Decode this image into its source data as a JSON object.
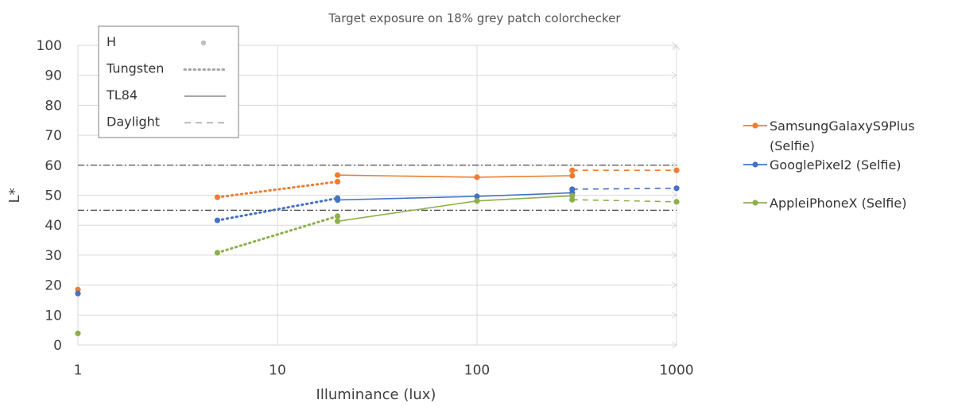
{
  "chart_data": {
    "type": "line",
    "title": "Target exposure on 18% grey patch colorchecker",
    "xlabel": "Illuminance (lux)",
    "ylabel": "L*",
    "xscale": "log",
    "xlim": [
      1,
      1000
    ],
    "ylim": [
      0,
      100
    ],
    "xticks": [
      "1",
      "10",
      "100",
      "1000"
    ],
    "yticks": [
      "0",
      "10",
      "20",
      "30",
      "40",
      "50",
      "60",
      "70",
      "80",
      "90",
      "100"
    ],
    "grid": true,
    "reference_lines": [
      60,
      45
    ],
    "colors": {
      "samsung": "#ED7D31",
      "google": "#4472C4",
      "apple": "#8DB04A",
      "legend_marker": "#bfbfbf",
      "legend_line": "#a6a6a6",
      "reference": "#404040"
    },
    "illuminant_legend": {
      "placement": "top-left",
      "items": [
        {
          "label": "H",
          "style": "marker"
        },
        {
          "label": "Tungsten",
          "style": "dotted"
        },
        {
          "label": "TL84",
          "style": "solid"
        },
        {
          "label": "Daylight",
          "style": "dashed"
        }
      ]
    },
    "device_legend": {
      "placement": "right",
      "items": [
        {
          "key": "samsung",
          "lines": [
            "SamsungGalaxyS9Plus",
            "(Selfie)"
          ]
        },
        {
          "key": "google",
          "lines": [
            "GooglePixel2 (Selfie)"
          ]
        },
        {
          "key": "apple",
          "lines": [
            "AppleiPhoneX (Selfie)"
          ]
        }
      ]
    },
    "series": [
      {
        "name": "SamsungGalaxyS9Plus (Selfie)",
        "key": "samsung",
        "H": [
          [
            1,
            18.5
          ]
        ],
        "Tungsten": [
          [
            5,
            49.3
          ],
          [
            20,
            54.5
          ]
        ],
        "TL84": [
          [
            20,
            56.7
          ],
          [
            100,
            56.0
          ],
          [
            300,
            56.5
          ]
        ],
        "Daylight": [
          [
            300,
            58.3
          ],
          [
            1000,
            58.3
          ]
        ]
      },
      {
        "name": "GooglePixel2 (Selfie)",
        "key": "google",
        "H": [
          [
            1,
            17.2
          ]
        ],
        "Tungsten": [
          [
            5,
            41.6
          ],
          [
            20,
            49.0
          ]
        ],
        "TL84": [
          [
            20,
            48.4
          ],
          [
            100,
            49.6
          ],
          [
            300,
            50.8
          ]
        ],
        "Daylight": [
          [
            300,
            52.0
          ],
          [
            1000,
            52.3
          ]
        ]
      },
      {
        "name": "AppleiPhoneX (Selfie)",
        "key": "apple",
        "H": [
          [
            1,
            3.9
          ]
        ],
        "Tungsten": [
          [
            5,
            30.8
          ],
          [
            20,
            43.0
          ]
        ],
        "TL84": [
          [
            20,
            41.3
          ],
          [
            100,
            48.1
          ],
          [
            300,
            49.8
          ]
        ],
        "Daylight": [
          [
            300,
            48.5
          ],
          [
            1000,
            47.8
          ]
        ]
      }
    ]
  }
}
